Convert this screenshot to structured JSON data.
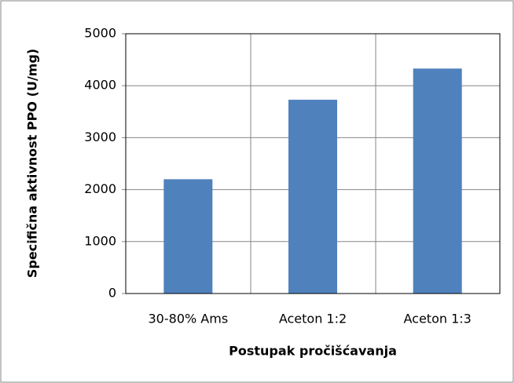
{
  "chart_data": {
    "type": "bar",
    "categories": [
      "30-80% Ams",
      "Aceton 1:2",
      "Aceton 1:3"
    ],
    "values": [
      2200,
      3730,
      4330
    ],
    "color": "#4f81bd",
    "x_label": "Postupak pročišćavanja",
    "y_label": "Specifična aktivnost PPO (U/mg)",
    "ylim": [
      0,
      5000
    ],
    "yticks": [
      0,
      1000,
      2000,
      3000,
      4000,
      5000
    ],
    "grid": true
  }
}
